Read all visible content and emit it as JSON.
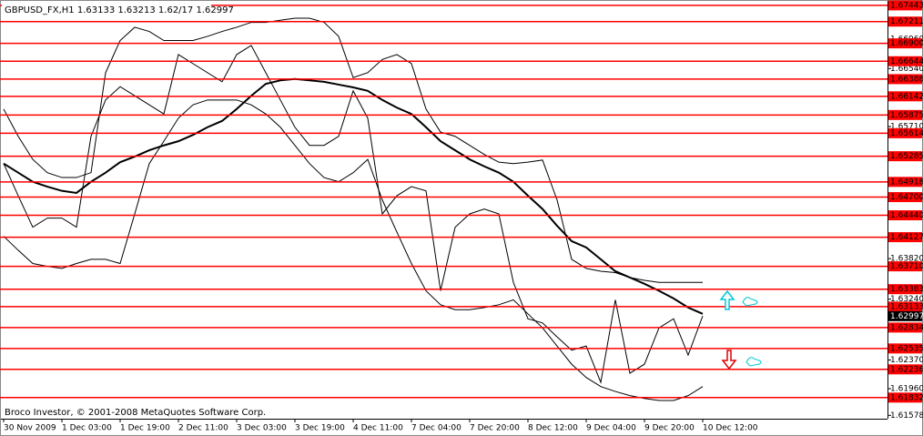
{
  "chart_data": {
    "type": "line",
    "title": "GBPUSD_FX,H1  1.63133 1.63213 1.62/17 1.62997",
    "footer": "Broco Investor, © 2001-2008 MetaQuotes Software Corp.",
    "categories": [
      "30 Nov 2009",
      null,
      null,
      null,
      "1 Dec 03:00",
      null,
      null,
      null,
      "1 Dec 19:00",
      null,
      null,
      null,
      "2 Dec 11:00",
      null,
      null,
      null,
      "3 Dec 03:00",
      null,
      null,
      null,
      "3 Dec 19:00",
      null,
      null,
      null,
      "4 Dec 11:00",
      null,
      null,
      null,
      "7 Dec 04:00",
      null,
      null,
      null,
      "7 Dec 20:00",
      null,
      null,
      null,
      "8 Dec 12:00",
      null,
      null,
      null,
      "9 Dec 04:00",
      null,
      null,
      null,
      "9 Dec 20:00",
      null,
      null,
      null,
      "10 Dec 12:00"
    ],
    "series": [
      {
        "color": "#000000",
        "values": [
          1.6518,
          1.6472,
          1.6427,
          1.644,
          1.644,
          1.6427,
          1.6557,
          1.6609,
          1.6628,
          1.6615,
          1.6602,
          1.6589,
          1.6674,
          1.6661,
          1.6648,
          1.6635,
          1.6674,
          1.6687,
          1.6648,
          1.6609,
          1.657,
          1.6544,
          1.6544,
          1.6557,
          1.6622,
          1.6583,
          1.6446,
          1.6472,
          1.6485,
          1.6479,
          1.6336,
          1.6427,
          1.6446,
          1.6453,
          1.6446,
          1.6348,
          1.6296,
          1.629,
          1.627,
          1.6251,
          1.6257,
          1.6205,
          1.6323,
          1.6218,
          1.6231,
          1.6283,
          1.6296,
          1.6244,
          1.63
        ]
      },
      {
        "color": "#000000",
        "values": [
          1.6518,
          1.6505,
          1.6492,
          1.6485,
          1.6479,
          1.6476,
          1.6492,
          1.6505,
          1.652,
          1.6528,
          1.6537,
          1.6544,
          1.655,
          1.6559,
          1.657,
          1.6579,
          1.6596,
          1.6615,
          1.6632,
          1.6637,
          1.6639,
          1.6637,
          1.6635,
          1.6631,
          1.6627,
          1.6622,
          1.6609,
          1.6598,
          1.6589,
          1.657,
          1.655,
          1.6537,
          1.6524,
          1.6514,
          1.6505,
          1.6492,
          1.6472,
          1.6453,
          1.6429,
          1.6407,
          1.6398,
          1.6381,
          1.6364,
          1.6355,
          1.6346,
          1.6336,
          1.6325,
          1.6312,
          1.6303
        ]
      },
      {
        "color": "#000000",
        "values": [
          1.6596,
          1.6557,
          1.6524,
          1.6505,
          1.6498,
          1.6498,
          1.6505,
          1.6648,
          1.6694,
          1.6713,
          1.6707,
          1.6694,
          1.6694,
          1.6694,
          1.67,
          1.6707,
          1.6713,
          1.672,
          1.672,
          1.6723,
          1.6726,
          1.6726,
          1.672,
          1.67,
          1.6641,
          1.6648,
          1.6667,
          1.6674,
          1.6661,
          1.6596,
          1.6563,
          1.6557,
          1.6544,
          1.6531,
          1.652,
          1.6518,
          1.652,
          1.6523,
          1.6466,
          1.6381,
          1.6368,
          1.6364,
          1.6362,
          1.6355,
          1.6351,
          1.6348,
          1.6348,
          1.6348,
          1.6348
        ]
      },
      {
        "color": "#000000",
        "values": [
          1.6414,
          1.6394,
          1.6375,
          1.6371,
          1.6368,
          1.6375,
          1.6381,
          1.6381,
          1.6375,
          1.6446,
          1.6518,
          1.655,
          1.6583,
          1.6602,
          1.6609,
          1.6609,
          1.6609,
          1.6602,
          1.6589,
          1.657,
          1.6544,
          1.6518,
          1.6498,
          1.6492,
          1.6505,
          1.6524,
          1.6466,
          1.642,
          1.6375,
          1.6336,
          1.6316,
          1.6309,
          1.6309,
          1.6312,
          1.6316,
          1.6323,
          1.6303,
          1.6283,
          1.6257,
          1.6231,
          1.6212,
          1.6199,
          1.6192,
          1.6186,
          1.6182,
          1.6179,
          1.6179,
          1.6186,
          1.6199
        ]
      }
    ],
    "ylim": [
      1.6153,
      1.6752
    ],
    "yticks": [
      {
        "value": 1.6696,
        "label": "1.66960"
      },
      {
        "value": 1.6654,
        "label": "1.66540"
      },
      {
        "value": 1.6571,
        "label": "1.65710"
      },
      {
        "value": 1.6382,
        "label": "1.63820"
      },
      {
        "value": 1.6324,
        "label": "1.63240"
      },
      {
        "value": 1.6237,
        "label": "1.62370"
      },
      {
        "value": 1.6196,
        "label": "1.61960"
      },
      1.61578
    ],
    "levels": [
      1.67443,
      1.67211,
      {
        "value": 1.669,
        "label": "1.66900"
      },
      1.66644,
      1.66388,
      1.66142,
      1.65875,
      1.65614,
      1.65285,
      1.64918,
      {
        "value": 1.647,
        "label": "1.64700"
      },
      {
        "value": 1.6444,
        "label": "1.64440"
      },
      1.64127,
      {
        "value": 1.6371,
        "label": "1.63710"
      },
      1.63383,
      1.63133,
      1.62834,
      1.62535,
      1.62236,
      1.61832
    ],
    "level_color": "#ff0000",
    "current_price": 1.62997,
    "grid": false
  }
}
